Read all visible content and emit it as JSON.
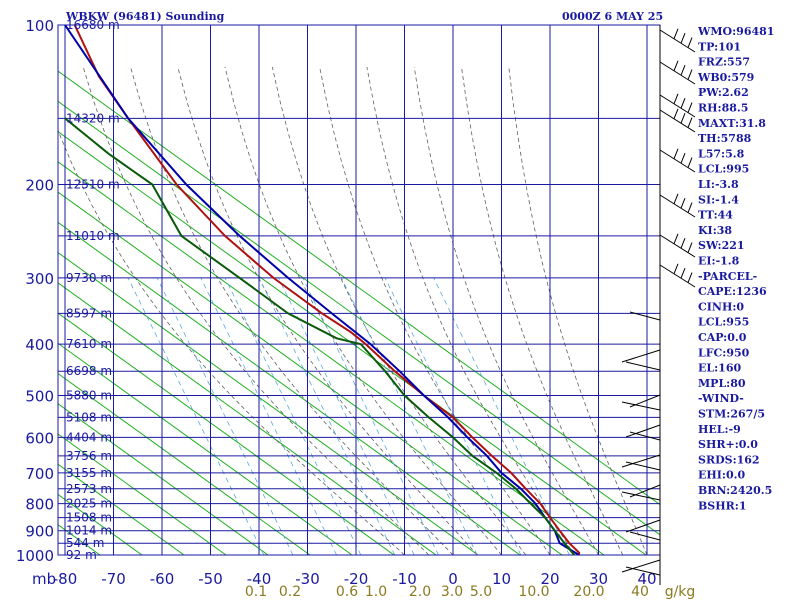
{
  "chart_data": {
    "type": "line",
    "title": "WBKW (96481) Sounding",
    "timestamp": "0000Z  6 MAY 25",
    "pressure_levels": [
      100,
      200,
      300,
      400,
      500,
      600,
      700,
      800,
      900,
      1000
    ],
    "pressure_unit": "mb",
    "height_labels": [
      "16680 m",
      "14320 m",
      "12510 m",
      "11010 m",
      "9730 m",
      "8597 m",
      "7610 m",
      "6698 m",
      "5880 m",
      "5108 m",
      "4404 m",
      "3756 m",
      "3155 m",
      "2573 m",
      "2025 m",
      "1508 m",
      "1014 m",
      "544 m",
      "92 m"
    ],
    "height_pressures": [
      100,
      150,
      200,
      250,
      300,
      350,
      400,
      450,
      500,
      550,
      600,
      650,
      700,
      750,
      800,
      850,
      900,
      950,
      1000
    ],
    "temp_ticks": [
      -80,
      -70,
      -60,
      -50,
      -40,
      -30,
      -20,
      -10,
      0,
      10,
      20,
      30,
      40
    ],
    "mixing_ratio_labels": [
      "0.1",
      "0.2",
      "0.6",
      "1.0",
      "2.0",
      "3.0",
      "5.0",
      "10.0",
      "20.0",
      "40",
      "g/kg"
    ],
    "xlim": [
      -80,
      40
    ],
    "ylim": [
      100,
      1000
    ],
    "series": [
      {
        "name": "",
        "color": "#b01010",
        "pressure": [
          100,
          125,
          150,
          200,
          250,
          300,
          350,
          380,
          400,
          450,
          500,
          550,
          600,
          650,
          700,
          750,
          800,
          850,
          900,
          950,
          990,
          1000
        ],
        "values": [
          -78,
          -73,
          -67,
          -57,
          -47,
          -37,
          -27,
          -21,
          -18,
          -12,
          -6,
          0,
          4,
          8,
          12,
          15,
          18,
          20,
          22,
          24,
          26,
          26
        ]
      },
      {
        "name": "",
        "color": "#0000aa",
        "pressure": [
          100,
          150,
          200,
          250,
          300,
          350,
          400,
          450,
          500,
          550,
          600,
          650,
          700,
          750,
          800,
          850,
          900,
          950,
          1000
        ],
        "values": [
          -80,
          -67,
          -55,
          -44,
          -34,
          -25,
          -17,
          -11,
          -6,
          -1,
          3,
          7,
          10,
          14,
          17,
          19,
          21,
          22,
          26
        ]
      },
      {
        "name": "",
        "color": "#0a5a0a",
        "pressure": [
          150,
          175,
          200,
          250,
          300,
          350,
          390,
          400,
          450,
          500,
          550,
          600,
          650,
          700,
          750,
          800,
          850,
          900,
          950,
          1000
        ],
        "values": [
          -80,
          -71,
          -62,
          -56,
          -44,
          -34,
          -24,
          -19,
          -14,
          -10,
          -5,
          0,
          4,
          9,
          13,
          16,
          19,
          21,
          23,
          25
        ]
      }
    ]
  },
  "indices": [
    "WMO:96481",
    "TP:101",
    "FRZ:557",
    "WB0:579",
    "PW:2.62",
    "RH:88.5",
    "MAXT:31.8",
    "TH:5788",
    "L57:5.8",
    "LCL:995",
    "LI:-3.8",
    "SI:-1.4",
    "TT:44",
    "KI:38",
    "SW:221",
    "EI:-1.8",
    "-PARCEL-",
    "CAPE:1236",
    "CINH:0",
    "LCL:955",
    "CAP:0.0",
    "LFC:950",
    "EL:160",
    "MPL:80",
    "-WIND-",
    "STM:267/5",
    "HEL:-9",
    "SHR+:0.0",
    "SRDS:162",
    "EHI:0.0",
    "BRN:2420.5",
    "BSHR:1"
  ],
  "colors": {
    "grid": "#1a1aa0",
    "dry_adiabat": "#20b020",
    "moist_adiabat": "#606060",
    "mixing_ratio": "#5aaae0"
  }
}
